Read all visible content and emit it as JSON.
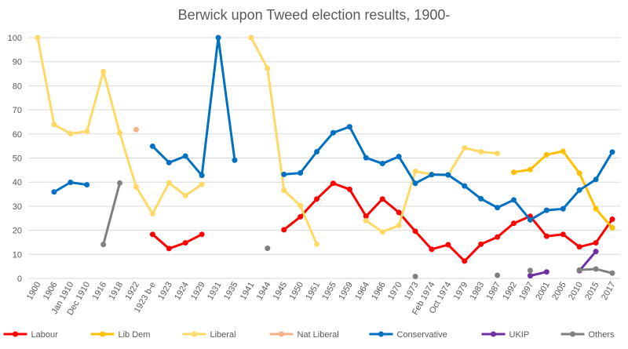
{
  "chart_data": {
    "type": "line",
    "title": "Berwick upon Tweed election results, 1900-",
    "ylim": [
      0,
      100
    ],
    "y_ticks": [
      0,
      10,
      20,
      30,
      40,
      50,
      60,
      70,
      80,
      90,
      100
    ],
    "grid": true,
    "legend_position": "bottom",
    "categories": [
      "1900",
      "1906",
      "Jan 1910",
      "Dec 1910",
      "1916",
      "1918",
      "1922",
      "1923 b-e",
      "1923",
      "1924",
      "1929",
      "1931",
      "1935",
      "1941",
      "1944",
      "1945",
      "1950",
      "1951",
      "1955",
      "1959",
      "1964",
      "1966",
      "1970",
      "1973",
      "Feb 1974",
      "Oct 1974",
      "1979",
      "1983",
      "1987",
      "1992",
      "1997",
      "2001",
      "2005",
      "2010",
      "2015",
      "2017"
    ],
    "tick_labels": [
      "1900",
      "1906",
      "Jan 1910",
      "Dec 1910",
      "1916",
      "1918",
      "1922",
      "1923 b-e",
      "1923",
      "1924",
      "1929",
      "1931",
      "1935",
      "1941",
      "1944",
      "1945",
      "1950",
      "1951",
      "1955",
      "1959",
      "1964",
      "1966",
      "1970",
      "1973",
      "Feb 1974",
      "Oct 1974",
      "1979",
      "1983",
      "1987",
      "1992",
      "1997",
      "2001",
      "2005",
      "2010",
      "2015",
      "2017"
    ],
    "point_slots": [
      "1900",
      "1906",
      "Jan 1910",
      "Dec 1910",
      "1916",
      "1918",
      "1922",
      "1923 b-e",
      "1923",
      "1924",
      "1929",
      "1931",
      "1935",
      "1941",
      "1944",
      "1945",
      "1950",
      "1951",
      "1955",
      "1959",
      "1964",
      "1966",
      "1970",
      "1973",
      "Feb 1974",
      "Oct 1974",
      "1979",
      "1983",
      "1987",
      "1992",
      "1997",
      "2001",
      "2005",
      "2010",
      "2015",
      "2017"
    ],
    "series": [
      {
        "name": "Labour",
        "color": "#ff0000",
        "values": [
          null,
          null,
          null,
          null,
          null,
          null,
          null,
          18.3,
          12.4,
          14.8,
          18.3,
          null,
          null,
          null,
          null,
          20.2,
          25.6,
          33.0,
          39.5,
          37.0,
          25.8,
          33.0,
          27.4,
          19.6,
          12.1,
          14.0,
          7.2,
          14.2,
          17.2,
          22.9,
          25.8,
          17.5,
          18.3,
          13.1,
          14.8,
          24.6
        ]
      },
      {
        "name": "Lib Dem",
        "color": "#ffc000",
        "values": [
          null,
          null,
          null,
          null,
          null,
          null,
          null,
          null,
          null,
          null,
          null,
          null,
          null,
          null,
          null,
          null,
          null,
          null,
          null,
          null,
          null,
          null,
          null,
          null,
          null,
          null,
          null,
          null,
          null,
          44.1,
          45.2,
          51.4,
          52.8,
          43.7,
          28.9,
          21.0
        ]
      },
      {
        "name": "Liberal",
        "color": "#ffd966",
        "values": [
          100,
          63.9,
          60.1,
          61.1,
          85.9,
          60.4,
          38.0,
          26.9,
          39.7,
          34.4,
          39.1,
          null,
          null,
          100,
          87.2,
          36.6,
          30.2,
          14.2,
          null,
          null,
          24.0,
          19.3,
          22.0,
          44.5,
          43.2,
          42.9,
          54.2,
          52.6,
          51.9,
          null,
          null,
          null,
          null,
          null,
          null,
          null
        ]
      },
      {
        "name": "Nat Liberal",
        "color": "#f4b183",
        "values": [
          null,
          null,
          null,
          null,
          null,
          null,
          61.8,
          null,
          null,
          null,
          null,
          null,
          null,
          null,
          null,
          null,
          null,
          null,
          null,
          null,
          null,
          null,
          null,
          null,
          null,
          null,
          null,
          null,
          null,
          null,
          null,
          null,
          null,
          null,
          null,
          null
        ]
      },
      {
        "name": "Conservative",
        "color": "#0070c0",
        "values": [
          null,
          35.9,
          39.9,
          38.9,
          null,
          null,
          null,
          54.9,
          48.1,
          50.8,
          42.8,
          100,
          49.1,
          null,
          null,
          43.2,
          43.8,
          52.6,
          60.5,
          63.0,
          50.1,
          47.7,
          50.6,
          39.5,
          43.1,
          43.0,
          38.4,
          33.1,
          29.4,
          32.6,
          24.3,
          28.3,
          28.9,
          36.7,
          41.1,
          52.5
        ]
      },
      {
        "name": "UKIP",
        "color": "#7030a0",
        "values": [
          null,
          null,
          null,
          null,
          null,
          null,
          null,
          null,
          null,
          null,
          null,
          null,
          null,
          null,
          null,
          null,
          null,
          null,
          null,
          null,
          null,
          null,
          null,
          null,
          null,
          null,
          null,
          null,
          null,
          null,
          1.1,
          2.7,
          null,
          3.2,
          11.2,
          null
        ]
      },
      {
        "name": "Others",
        "color": "#808080",
        "values": [
          null,
          null,
          null,
          null,
          14.1,
          39.6,
          null,
          null,
          null,
          null,
          null,
          null,
          null,
          null,
          12.5,
          null,
          null,
          null,
          null,
          null,
          null,
          null,
          null,
          0.8,
          null,
          null,
          null,
          null,
          1.3,
          null,
          3.3,
          null,
          null,
          3.5,
          3.9,
          2.2
        ]
      }
    ]
  }
}
